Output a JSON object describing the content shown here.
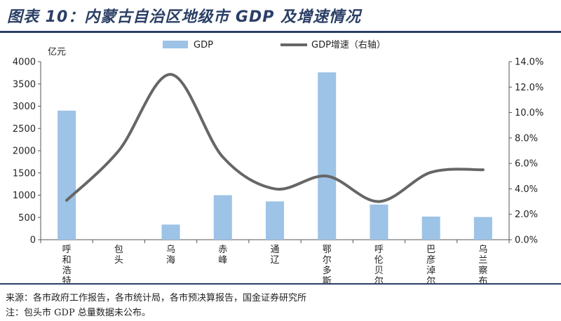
{
  "title": "图表 10：内蒙古自治区地级市 GDP 及增速情况",
  "source_line_1": "来源：各市政府工作报告，各市统计局，各市预决算报告，国金证券研究所",
  "source_line_2": "注：包头市 GDP 总量数据未公布。",
  "colors": {
    "bar": "#9dc3e6",
    "line": "#666666",
    "title": "#2b3f66"
  },
  "chart_data": {
    "type": "bar",
    "categories": [
      "呼和浩特",
      "包头",
      "乌海",
      "赤峰",
      "通辽",
      "鄂尔多斯",
      "呼伦贝尔",
      "巴彦淖尔",
      "乌兰察布"
    ],
    "series": [
      {
        "name": "GDP",
        "type": "bar",
        "axis": "left",
        "values": [
          2900,
          null,
          340,
          1000,
          860,
          3760,
          790,
          520,
          510
        ]
      },
      {
        "name": "GDP增速（右轴）",
        "type": "line",
        "axis": "right",
        "smooth": true,
        "values": [
          3.1,
          7.0,
          13.0,
          6.5,
          4.0,
          5.0,
          3.0,
          5.3,
          5.5
        ]
      }
    ],
    "y_left": {
      "unit": "亿元",
      "ylim": [
        0,
        4000
      ],
      "ticks": [
        "0",
        "500",
        "1000",
        "1500",
        "2000",
        "2500",
        "3000",
        "3500",
        "4000"
      ]
    },
    "y_right": {
      "ylim": [
        0,
        14
      ],
      "ticks": [
        "0.0%",
        "2.0%",
        "4.0%",
        "6.0%",
        "8.0%",
        "10.0%",
        "12.0%",
        "14.0%"
      ]
    },
    "legend": {
      "placement": "top"
    },
    "grid": false
  }
}
